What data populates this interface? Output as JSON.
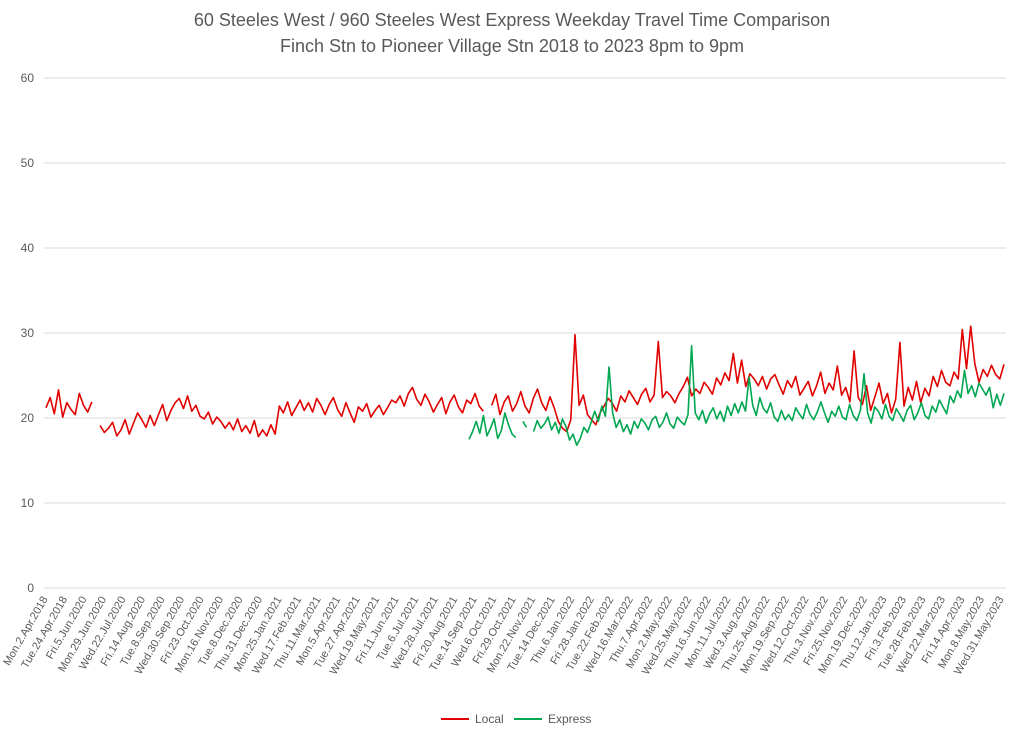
{
  "chart_data": {
    "type": "line",
    "title": "60 Steeles West / 960 Steeles West Express Weekday Travel Time Comparison",
    "subtitle": "Finch Stn to Pioneer Village Stn 2018 to 2023 8pm to 9pm",
    "xlabel": "",
    "ylabel": "",
    "ylim": [
      0,
      60
    ],
    "yticks": [
      0,
      10,
      20,
      30,
      40,
      50,
      60
    ],
    "grid": true,
    "legend_position": "bottom",
    "x_tick_labels": [
      "Mon.2.Apr.2018",
      "Tue.24.Apr.2018",
      "Fri.5.Jun.2020",
      "Mon.29.Jun.2020",
      "Wed.22.Jul.2020",
      "Fri.14.Aug.2020",
      "Tue.8.Sep.2020",
      "Wed.30.Sep.2020",
      "Fri.23.Oct.2020",
      "Mon.16.Nov.2020",
      "Tue.8.Dec.2020",
      "Thu.31.Dec.2020",
      "Mon.25.Jan.2021",
      "Wed.17.Feb.2021",
      "Thu.11.Mar.2021",
      "Mon.5.Apr.2021",
      "Tue.27.Apr.2021",
      "Wed.19.May.2021",
      "Fri.11.Jun.2021",
      "Tue.6.Jul.2021",
      "Wed.28.Jul.2021",
      "Fri.20.Aug.2021",
      "Tue.14.Sep.2021",
      "Wed.6.Oct.2021",
      "Fri.29.Oct.2021",
      "Mon.22.Nov.2021",
      "Tue.14.Dec.2021",
      "Thu.6.Jan.2022",
      "Fri.28.Jan.2022",
      "Tue.22.Feb.2022",
      "Wed.16.Mar.2022",
      "Thu.7.Apr.2022",
      "Mon.2.May.2022",
      "Wed.25.May.2022",
      "Thu.16.Jun.2022",
      "Mon.11.Jul.2022",
      "Wed.3.Aug.2022",
      "Thu.25.Aug.2022",
      "Mon.19.Sep.2022",
      "Wed.12.Oct.2022",
      "Thu.3.Nov.2022",
      "Fri.25.Nov.2022",
      "Mon.19.Dec.2022",
      "Thu.12.Jan.2023",
      "Fri.3.Feb.2023",
      "Tue.28.Feb.2023",
      "Wed.22.Mar.2023",
      "Fri.14.Apr.2023",
      "Mon.8.May.2023",
      "Wed.31.May.2023"
    ],
    "series": [
      {
        "name": "Local",
        "color": "#e00000",
        "values": [
          21.2,
          22.4,
          20.5,
          23.3,
          20.1,
          21.8,
          21.0,
          20.4,
          22.9,
          21.5,
          20.7,
          21.9,
          null,
          19.1,
          18.3,
          18.8,
          19.5,
          17.9,
          18.6,
          19.8,
          18.1,
          19.4,
          20.6,
          19.8,
          18.9,
          20.3,
          19.1,
          20.4,
          21.6,
          19.7,
          20.9,
          21.8,
          22.3,
          21.1,
          22.6,
          20.8,
          21.5,
          20.2,
          19.9,
          20.7,
          19.3,
          20.1,
          19.6,
          18.8,
          19.5,
          18.6,
          19.9,
          18.4,
          19.1,
          18.2,
          19.7,
          17.8,
          18.6,
          17.9,
          19.2,
          18.1,
          21.4,
          20.6,
          21.9,
          20.3,
          21.2,
          22.1,
          20.9,
          21.8,
          20.7,
          22.3,
          21.5,
          20.4,
          21.6,
          22.4,
          21.0,
          20.2,
          21.8,
          20.6,
          19.5,
          21.3,
          20.8,
          21.7,
          20.1,
          20.9,
          21.5,
          20.4,
          21.2,
          22.1,
          21.8,
          22.6,
          21.4,
          22.9,
          23.6,
          22.2,
          21.5,
          22.8,
          21.9,
          20.7,
          21.6,
          22.4,
          20.5,
          21.9,
          22.7,
          21.3,
          20.6,
          22.1,
          21.7,
          22.9,
          21.4,
          20.8,
          null,
          21.5,
          22.8,
          20.4,
          21.9,
          22.6,
          20.8,
          21.7,
          23.1,
          21.4,
          20.6,
          22.3,
          23.4,
          21.8,
          20.9,
          22.5,
          21.2,
          19.6,
          18.8,
          18.4,
          19.8,
          29.8,
          21.5,
          22.7,
          20.4,
          19.8,
          19.2,
          20.6,
          21.4,
          22.3,
          21.7,
          20.8,
          22.6,
          21.9,
          23.2,
          22.4,
          21.6,
          22.8,
          23.5,
          21.9,
          22.7,
          29.0,
          22.4,
          23.1,
          22.6,
          21.8,
          22.9,
          23.7,
          24.8,
          22.6,
          23.4,
          22.9,
          24.2,
          23.6,
          22.8,
          24.7,
          23.9,
          25.3,
          24.4,
          27.6,
          24.1,
          26.8,
          23.7,
          25.2,
          24.6,
          23.8,
          24.9,
          23.4,
          24.6,
          25.1,
          23.9,
          22.8,
          24.4,
          23.6,
          24.9,
          22.7,
          23.5,
          24.3,
          22.6,
          23.8,
          25.4,
          22.9,
          24.1,
          23.3,
          26.1,
          22.7,
          23.6,
          21.9,
          27.9,
          22.4,
          21.6,
          23.8,
          20.9,
          22.5,
          24.1,
          21.7,
          22.9,
          20.6,
          22.2,
          28.9,
          21.4,
          23.6,
          22.1,
          24.3,
          21.8,
          23.5,
          22.6,
          24.9,
          23.7,
          25.6,
          24.2,
          23.8,
          25.4,
          24.6,
          30.4,
          25.8,
          30.8,
          26.4,
          24.2,
          25.7,
          24.9,
          26.2,
          25.1,
          24.6,
          26.3
        ]
      },
      {
        "name": "Express",
        "color": "#00a650",
        "values": [
          17.5,
          18.4,
          19.6,
          18.2,
          20.3,
          17.9,
          18.8,
          19.9,
          17.6,
          18.5,
          20.6,
          19.2,
          18.1,
          17.7,
          null,
          19.6,
          18.9,
          null,
          18.4,
          19.7,
          18.8,
          19.3,
          20.1,
          18.6,
          19.5,
          18.2,
          19.9,
          19.0,
          17.4,
          18.1,
          16.8,
          17.6,
          18.9,
          18.3,
          19.5,
          20.8,
          19.6,
          21.4,
          20.2,
          26.0,
          20.6,
          18.9,
          19.8,
          18.4,
          19.2,
          18.1,
          19.6,
          18.8,
          19.9,
          19.4,
          18.6,
          19.8,
          20.2,
          18.9,
          19.5,
          20.6,
          19.3,
          18.8,
          20.1,
          19.6,
          19.2,
          20.4,
          28.5,
          20.6,
          19.8,
          20.9,
          19.4,
          20.5,
          21.2,
          19.9,
          20.8,
          19.6,
          21.4,
          20.3,
          21.7,
          20.6,
          21.9,
          20.8,
          24.8,
          21.5,
          20.3,
          22.4,
          21.1,
          20.6,
          21.8,
          20.1,
          19.6,
          20.9,
          19.8,
          20.4,
          19.7,
          21.2,
          20.5,
          19.9,
          21.6,
          20.4,
          19.8,
          20.7,
          21.9,
          20.6,
          19.5,
          20.8,
          20.2,
          21.4,
          20.1,
          19.8,
          21.6,
          20.3,
          19.7,
          20.9,
          25.2,
          20.6,
          19.4,
          21.3,
          20.8,
          19.9,
          21.6,
          20.2,
          19.7,
          21.1,
          20.4,
          19.6,
          20.9,
          21.5,
          19.8,
          20.6,
          21.8,
          20.3,
          19.9,
          21.4,
          20.7,
          22.1,
          21.3,
          20.5,
          22.6,
          21.8,
          23.2,
          22.4,
          25.6,
          22.9,
          23.8,
          22.5,
          24.1,
          23.4,
          22.7,
          23.6,
          21.2,
          22.8,
          21.5,
          22.9
        ]
      }
    ]
  }
}
